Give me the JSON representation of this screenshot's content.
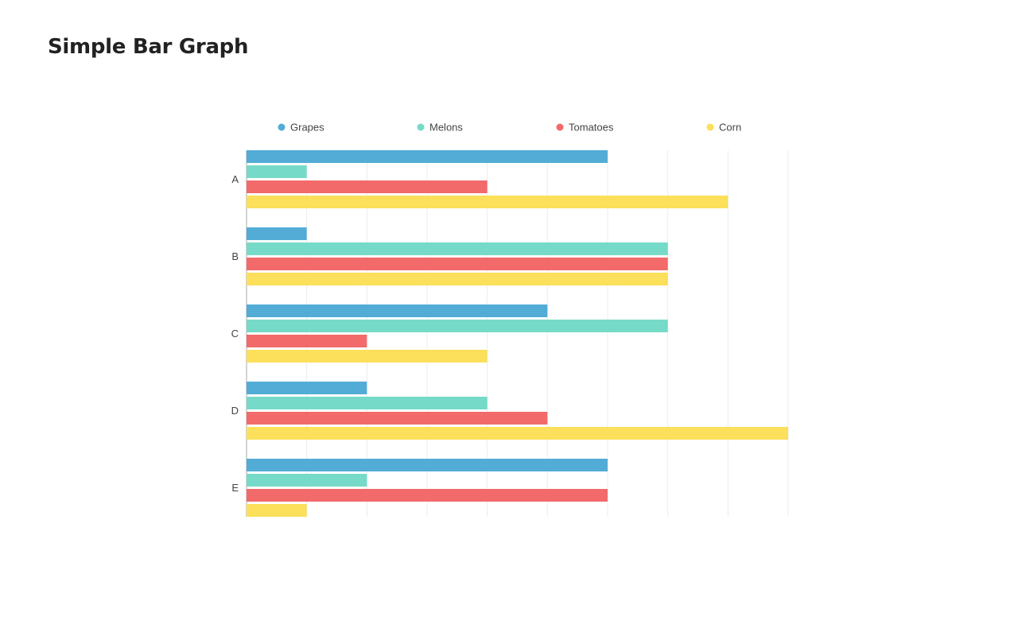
{
  "page": {
    "title": "Simple Bar Graph"
  },
  "chart_data": {
    "type": "bar",
    "orientation": "horizontal",
    "title": "",
    "xlabel": "",
    "ylabel": "",
    "categories": [
      "A",
      "B",
      "C",
      "D",
      "E"
    ],
    "series": [
      {
        "name": "Grapes",
        "color": "#52acd6",
        "values": [
          6,
          1,
          5,
          2,
          6
        ]
      },
      {
        "name": "Melons",
        "color": "#76dac8",
        "values": [
          1,
          7,
          7,
          4,
          2
        ]
      },
      {
        "name": "Tomatoes",
        "color": "#f26a6a",
        "values": [
          4,
          7,
          2,
          5,
          6
        ]
      },
      {
        "name": "Corn",
        "color": "#fcdf5a",
        "values": [
          8,
          7,
          4,
          9,
          1
        ]
      }
    ],
    "xlim": [
      0,
      9
    ],
    "grid": true,
    "tick_labels_shown": false,
    "legend_position": "top"
  }
}
